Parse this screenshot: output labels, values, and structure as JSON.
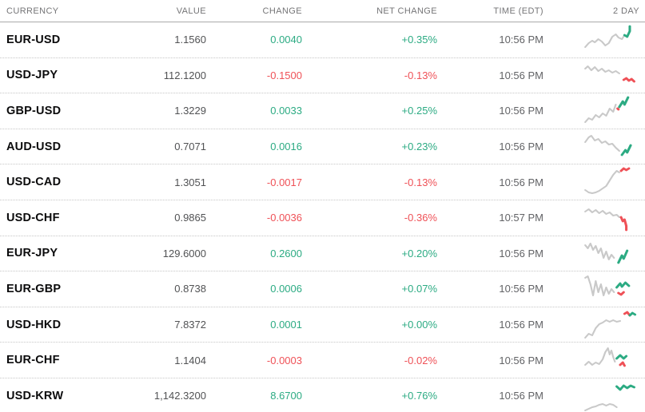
{
  "colors": {
    "positive": "#2cab83",
    "negative": "#ef5157",
    "spark_gray": "#c9c9c9",
    "header_text": "#757577",
    "value_text": "#515254",
    "currency_text": "#0b0b0c",
    "divider_dotted": "#c6c6c6",
    "divider_header": "#a9a9a9"
  },
  "table": {
    "columns": [
      {
        "label": "CURRENCY"
      },
      {
        "label": "VALUE"
      },
      {
        "label": "CHANGE"
      },
      {
        "label": "NET CHANGE"
      },
      {
        "label": "TIME (EDT)"
      },
      {
        "label": "2 DAY"
      }
    ],
    "rows": [
      {
        "currency": "EUR-USD",
        "value": "1.1560",
        "change": "0.0040",
        "net_change": "+0.35%",
        "time": "10:56 PM",
        "direction": "up",
        "spark": [
          {
            "tone": "gray",
            "points": [
              [
                2,
                29
              ],
              [
                6,
                24
              ],
              [
                10,
                21
              ],
              [
                13,
                23
              ],
              [
                17,
                19
              ],
              [
                21,
                22
              ],
              [
                25,
                27
              ],
              [
                29,
                24
              ],
              [
                33,
                16
              ],
              [
                37,
                13
              ],
              [
                40,
                17
              ],
              [
                44,
                19
              ],
              [
                47,
                14
              ]
            ]
          },
          {
            "tone": "pos",
            "points": [
              [
                47,
                14
              ],
              [
                50,
                16
              ],
              [
                53,
                9
              ],
              [
                53,
                3
              ]
            ]
          }
        ]
      },
      {
        "currency": "USD-JPY",
        "value": "112.1200",
        "change": "-0.1500",
        "net_change": "-0.13%",
        "time": "10:56 PM",
        "direction": "down",
        "spark": [
          {
            "tone": "gray",
            "points": [
              [
                2,
                12
              ],
              [
                5,
                9
              ],
              [
                9,
                14
              ],
              [
                13,
                10
              ],
              [
                17,
                15
              ],
              [
                21,
                12
              ],
              [
                25,
                16
              ],
              [
                29,
                14
              ],
              [
                33,
                17
              ],
              [
                37,
                15
              ],
              [
                41,
                18
              ]
            ]
          },
          {
            "tone": "neg",
            "points": [
              [
                46,
                26
              ],
              [
                49,
                24
              ],
              [
                52,
                27
              ],
              [
                55,
                25
              ],
              [
                58,
                28
              ]
            ]
          }
        ]
      },
      {
        "currency": "GBP-USD",
        "value": "1.3229",
        "change": "0.0033",
        "net_change": "+0.25%",
        "time": "10:56 PM",
        "direction": "up",
        "spark": [
          {
            "tone": "gray",
            "points": [
              [
                2,
                34
              ],
              [
                6,
                29
              ],
              [
                10,
                31
              ],
              [
                14,
                25
              ],
              [
                18,
                28
              ],
              [
                22,
                23
              ],
              [
                26,
                26
              ],
              [
                30,
                17
              ],
              [
                34,
                21
              ],
              [
                37,
                12
              ]
            ]
          },
          {
            "tone": "neg",
            "points": [
              [
                39,
                17
              ],
              [
                40,
                18
              ]
            ]
          },
          {
            "tone": "pos",
            "points": [
              [
                41,
                15
              ],
              [
                45,
                8
              ],
              [
                47,
                12
              ],
              [
                51,
                3
              ]
            ]
          }
        ]
      },
      {
        "currency": "AUD-USD",
        "value": "0.7071",
        "change": "0.0016",
        "net_change": "+0.23%",
        "time": "10:56 PM",
        "direction": "up",
        "spark": [
          {
            "tone": "gray",
            "points": [
              [
                2,
                14
              ],
              [
                6,
                8
              ],
              [
                9,
                6
              ],
              [
                13,
                12
              ],
              [
                17,
                10
              ],
              [
                21,
                15
              ],
              [
                25,
                13
              ],
              [
                29,
                17
              ],
              [
                33,
                16
              ],
              [
                37,
                21
              ],
              [
                41,
                25
              ]
            ]
          },
          {
            "tone": "pos",
            "points": [
              [
                44,
                30
              ],
              [
                48,
                24
              ],
              [
                50,
                27
              ],
              [
                54,
                18
              ]
            ]
          }
        ]
      },
      {
        "currency": "USD-CAD",
        "value": "1.3051",
        "change": "-0.0017",
        "net_change": "-0.13%",
        "time": "10:56 PM",
        "direction": "down",
        "spark": [
          {
            "tone": "gray",
            "points": [
              [
                2,
                30
              ],
              [
                6,
                33
              ],
              [
                10,
                34
              ],
              [
                14,
                33
              ],
              [
                18,
                31
              ],
              [
                22,
                28
              ],
              [
                26,
                25
              ],
              [
                30,
                18
              ],
              [
                34,
                11
              ],
              [
                38,
                6
              ],
              [
                41,
                8
              ]
            ]
          },
          {
            "tone": "neg",
            "points": [
              [
                43,
                6
              ],
              [
                46,
                3
              ],
              [
                49,
                5
              ],
              [
                52,
                3
              ]
            ]
          }
        ]
      },
      {
        "currency": "USD-CHF",
        "value": "0.9865",
        "change": "-0.0036",
        "net_change": "-0.36%",
        "time": "10:57 PM",
        "direction": "down",
        "spark": [
          {
            "tone": "gray",
            "points": [
              [
                2,
                12
              ],
              [
                6,
                9
              ],
              [
                10,
                13
              ],
              [
                14,
                10
              ],
              [
                18,
                14
              ],
              [
                22,
                11
              ],
              [
                26,
                15
              ],
              [
                30,
                13
              ],
              [
                34,
                17
              ],
              [
                38,
                16
              ],
              [
                41,
                19
              ]
            ]
          },
          {
            "tone": "neg",
            "points": [
              [
                43,
                19
              ],
              [
                45,
                24
              ],
              [
                47,
                22
              ],
              [
                49,
                30
              ],
              [
                49,
                35
              ]
            ]
          }
        ]
      },
      {
        "currency": "EUR-JPY",
        "value": "129.6000",
        "change": "0.2600",
        "net_change": "+0.20%",
        "time": "10:56 PM",
        "direction": "up",
        "spark": [
          {
            "tone": "gray",
            "points": [
              [
                2,
                10
              ],
              [
                5,
                14
              ],
              [
                8,
                8
              ],
              [
                11,
                16
              ],
              [
                14,
                11
              ],
              [
                17,
                20
              ],
              [
                20,
                14
              ],
              [
                23,
                26
              ],
              [
                26,
                18
              ],
              [
                29,
                28
              ],
              [
                32,
                22
              ],
              [
                35,
                26
              ]
            ]
          },
          {
            "tone": "pos",
            "points": [
              [
                40,
                32
              ],
              [
                44,
                23
              ],
              [
                46,
                27
              ],
              [
                50,
                17
              ]
            ]
          }
        ]
      },
      {
        "currency": "EUR-GBP",
        "value": "0.8738",
        "change": "0.0006",
        "net_change": "+0.07%",
        "time": "10:56 PM",
        "direction": "up",
        "spark": [
          {
            "tone": "gray",
            "points": [
              [
                2,
                6
              ],
              [
                5,
                4
              ],
              [
                8,
                14
              ],
              [
                11,
                28
              ],
              [
                14,
                10
              ],
              [
                17,
                24
              ],
              [
                20,
                14
              ],
              [
                23,
                28
              ],
              [
                26,
                18
              ],
              [
                29,
                26
              ],
              [
                32,
                20
              ],
              [
                35,
                24
              ]
            ]
          },
          {
            "tone": "pos",
            "points": [
              [
                38,
                18
              ],
              [
                42,
                13
              ],
              [
                44,
                17
              ],
              [
                48,
                12
              ],
              [
                52,
                16
              ]
            ]
          },
          {
            "tone": "neg",
            "points": [
              [
                40,
                25
              ],
              [
                43,
                27
              ],
              [
                46,
                24
              ]
            ]
          }
        ]
      },
      {
        "currency": "USD-HKD",
        "value": "7.8372",
        "change": "0.0001",
        "net_change": "+0.00%",
        "time": "10:56 PM",
        "direction": "up",
        "spark": [
          {
            "tone": "gray",
            "points": [
              [
                2,
                36
              ],
              [
                6,
                31
              ],
              [
                10,
                33
              ],
              [
                14,
                24
              ],
              [
                18,
                19
              ],
              [
                22,
                17
              ],
              [
                26,
                14
              ],
              [
                30,
                16
              ],
              [
                34,
                14
              ],
              [
                38,
                16
              ],
              [
                42,
                15
              ]
            ]
          },
          {
            "tone": "neg",
            "points": [
              [
                47,
                6
              ],
              [
                50,
                4
              ],
              [
                53,
                8
              ]
            ]
          },
          {
            "tone": "pos",
            "points": [
              [
                53,
                8
              ],
              [
                56,
                5
              ],
              [
                59,
                7
              ]
            ]
          }
        ]
      },
      {
        "currency": "EUR-CHF",
        "value": "1.1404",
        "change": "-0.0003",
        "net_change": "-0.02%",
        "time": "10:56 PM",
        "direction": "down",
        "spark": [
          {
            "tone": "gray",
            "points": [
              [
                2,
                26
              ],
              [
                6,
                22
              ],
              [
                10,
                26
              ],
              [
                14,
                23
              ],
              [
                18,
                25
              ],
              [
                22,
                19
              ],
              [
                25,
                10
              ],
              [
                28,
                5
              ],
              [
                30,
                13
              ],
              [
                32,
                8
              ],
              [
                34,
                16
              ],
              [
                36,
                22
              ]
            ]
          },
          {
            "tone": "pos",
            "points": [
              [
                38,
                18
              ],
              [
                42,
                14
              ],
              [
                46,
                18
              ],
              [
                49,
                15
              ]
            ]
          },
          {
            "tone": "neg",
            "points": [
              [
                42,
                26
              ],
              [
                45,
                23
              ],
              [
                47,
                27
              ]
            ]
          }
        ]
      },
      {
        "currency": "USD-KRW",
        "value": "1,142.3200",
        "change": "8.6700",
        "net_change": "+0.76%",
        "time": "10:56 PM",
        "direction": "up",
        "spark": [
          {
            "tone": "pos",
            "points": [
              [
                38,
                8
              ],
              [
                42,
                12
              ],
              [
                46,
                7
              ],
              [
                50,
                10
              ],
              [
                54,
                7
              ],
              [
                58,
                9
              ]
            ]
          },
          {
            "tone": "gray",
            "points": [
              [
                2,
                38
              ],
              [
                6,
                36
              ],
              [
                10,
                34
              ],
              [
                14,
                33
              ],
              [
                18,
                31
              ],
              [
                22,
                30
              ],
              [
                26,
                32
              ],
              [
                30,
                30
              ],
              [
                34,
                31
              ],
              [
                38,
                34
              ]
            ]
          }
        ]
      }
    ]
  }
}
